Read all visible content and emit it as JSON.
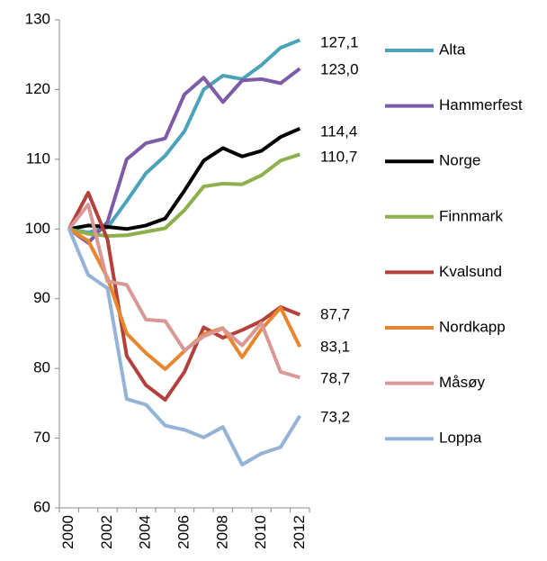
{
  "chart_data": {
    "type": "line",
    "categories": [
      "2000",
      null,
      "2002",
      null,
      "2004",
      null,
      "2006",
      null,
      "2008",
      null,
      "2010",
      null,
      "2012"
    ],
    "ylim": [
      60,
      130
    ],
    "yticks": [
      60,
      70,
      80,
      90,
      100,
      110,
      120,
      130
    ],
    "legend": "right",
    "series": [
      {
        "name": "Alta",
        "color": "#4aa3b8",
        "values": [
          100,
          99.5,
          100.2,
          104,
          108,
          110.5,
          114,
          120,
          122,
          121.5,
          123.5,
          126,
          127.1
        ],
        "value_labels": [
          null,
          null,
          null,
          null,
          null,
          null,
          null,
          null,
          null,
          null,
          null,
          null,
          "127,1"
        ]
      },
      {
        "name": "Hammerfest",
        "color": "#7d5ba6",
        "values": [
          100,
          98,
          101,
          110,
          112.3,
          113,
          119.3,
          121.7,
          118.2,
          121.3,
          121.5,
          120.9,
          123.0
        ],
        "value_labels": [
          null,
          null,
          null,
          null,
          null,
          null,
          null,
          null,
          null,
          null,
          null,
          null,
          "123,0"
        ]
      },
      {
        "name": "Norge",
        "color": "#000000",
        "values": [
          100,
          100.5,
          100.3,
          100,
          100.5,
          101.5,
          105.5,
          109.8,
          111.6,
          110.4,
          111.2,
          113.2,
          114.4
        ],
        "value_labels": [
          null,
          null,
          null,
          null,
          null,
          null,
          null,
          null,
          null,
          null,
          null,
          null,
          "114,4"
        ]
      },
      {
        "name": "Finnmark",
        "color": "#8db04a",
        "values": [
          100,
          99.3,
          99,
          99.1,
          99.6,
          100.1,
          102.7,
          106.1,
          106.5,
          106.4,
          107.7,
          109.8,
          110.7
        ],
        "value_labels": [
          null,
          null,
          null,
          null,
          null,
          null,
          null,
          null,
          null,
          null,
          null,
          null,
          "110,7"
        ]
      },
      {
        "name": "Kvalsund",
        "color": "#b3403a",
        "values": [
          100,
          105.2,
          98.5,
          81.8,
          77.6,
          75.5,
          79.5,
          85.9,
          84.4,
          85.5,
          86.8,
          88.8,
          87.7
        ],
        "value_labels": [
          null,
          null,
          null,
          null,
          null,
          null,
          null,
          null,
          null,
          null,
          null,
          null,
          "87,7"
        ]
      },
      {
        "name": "Nordkapp",
        "color": "#e8862e",
        "values": [
          100,
          98.3,
          93,
          85,
          82.2,
          79.9,
          82.5,
          84.9,
          85.8,
          81.6,
          85.6,
          88.7,
          83.1
        ],
        "value_labels": [
          null,
          null,
          null,
          null,
          null,
          null,
          null,
          null,
          null,
          null,
          null,
          null,
          "83,1"
        ]
      },
      {
        "name": "Måsøy",
        "color": "#d99795",
        "values": [
          100,
          103.5,
          92.5,
          92,
          87,
          86.8,
          82.6,
          84.6,
          85.7,
          83.3,
          86.5,
          79.5,
          78.7
        ],
        "value_labels": [
          null,
          null,
          null,
          null,
          null,
          null,
          null,
          null,
          null,
          null,
          null,
          null,
          "78,7"
        ]
      },
      {
        "name": "Loppa",
        "color": "#95b3d7",
        "values": [
          100,
          93.4,
          91.5,
          75.6,
          74.8,
          71.8,
          71.2,
          70.1,
          71.6,
          66.2,
          67.8,
          68.7,
          73.2
        ],
        "value_labels": [
          null,
          null,
          null,
          null,
          null,
          null,
          null,
          null,
          null,
          null,
          null,
          null,
          "73,2"
        ]
      }
    ]
  }
}
